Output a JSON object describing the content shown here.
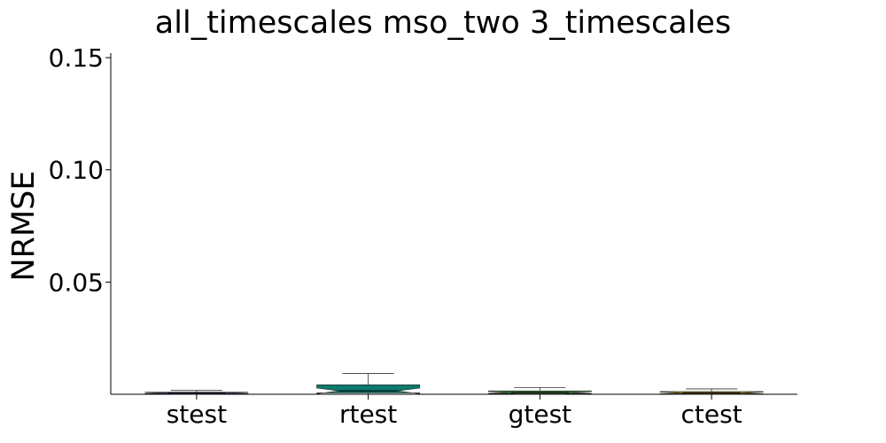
{
  "chart_data": {
    "type": "box",
    "title": "all_timescales mso_two 3_timescales",
    "xlabel": "",
    "ylabel": "NRMSE",
    "ylim": [
      0,
      0.152
    ],
    "yticks": [
      0.05,
      0.1,
      0.15
    ],
    "ytick_labels": [
      "0.05",
      "0.10",
      "0.15"
    ],
    "grid": false,
    "notched": true,
    "categories": [
      "stest",
      "rtest",
      "gtest",
      "ctest"
    ],
    "boxes": [
      {
        "category": "stest",
        "color": "#5a4fa8",
        "whisker_low": 0.0001,
        "q1": 0.0002,
        "median": 0.0005,
        "q3": 0.0009,
        "whisker_high": 0.0017
      },
      {
        "category": "rtest",
        "color": "#0e7a6e",
        "whisker_low": 0.0001,
        "q1": 0.0006,
        "median": 0.0015,
        "q3": 0.0042,
        "whisker_high": 0.0093
      },
      {
        "category": "gtest",
        "color": "#3f8f4a",
        "whisker_low": 0.0001,
        "q1": 0.0003,
        "median": 0.0008,
        "q3": 0.0015,
        "whisker_high": 0.003
      },
      {
        "category": "ctest",
        "color": "#b8a02a",
        "whisker_low": 0.0001,
        "q1": 0.0002,
        "median": 0.0006,
        "q3": 0.0012,
        "whisker_high": 0.0024
      }
    ]
  }
}
